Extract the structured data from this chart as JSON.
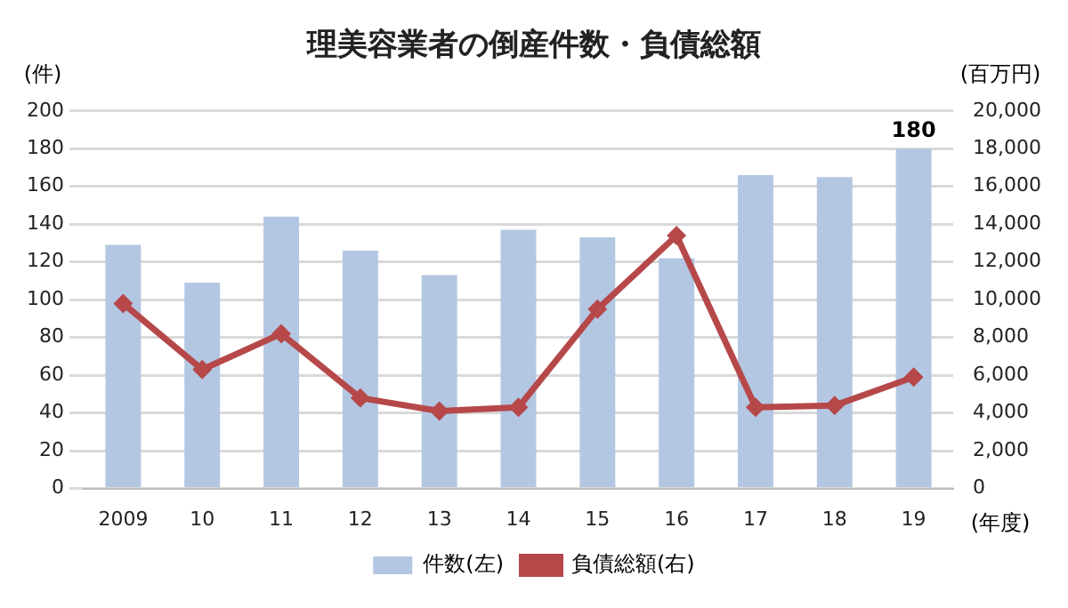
{
  "chart_data": {
    "type": "bar",
    "title": "理美容業者の倒産件数・負債総額",
    "categories": [
      "2009",
      "10",
      "11",
      "12",
      "13",
      "14",
      "15",
      "16",
      "17",
      "18",
      "19"
    ],
    "series": [
      {
        "name": "件数(左)",
        "color": "#b4c7e2",
        "values": [
          129,
          109,
          144,
          126,
          113,
          137,
          133,
          122,
          166,
          165,
          180
        ],
        "value_labels": [
          null,
          null,
          null,
          null,
          null,
          null,
          null,
          null,
          null,
          null,
          "180"
        ]
      },
      {
        "name": "負債総額(右)",
        "type": "line",
        "axis": "y2",
        "color": "#b6484a",
        "marker": "diamond",
        "values": [
          9800,
          6300,
          8200,
          4800,
          4100,
          4300,
          9500,
          13400,
          4300,
          4400,
          5900
        ]
      }
    ],
    "ylabel": "(件)",
    "y2label": "(百万円)",
    "xlabel": "(年度)",
    "ylim": [
      0,
      200
    ],
    "yticks": [
      0,
      20,
      40,
      60,
      80,
      100,
      120,
      140,
      160,
      180,
      200
    ],
    "y2lim": [
      0,
      20000
    ],
    "y2ticks": [
      0,
      {
        "value": 2000,
        "label": "2,000"
      },
      {
        "value": 4000,
        "label": "4,000"
      },
      {
        "value": 6000,
        "label": "6,000"
      },
      {
        "value": 8000,
        "label": "8,000"
      },
      {
        "value": 10000,
        "label": "10,000"
      },
      {
        "value": 12000,
        "label": "12,000"
      },
      {
        "value": 14000,
        "label": "14,000"
      },
      {
        "value": 16000,
        "label": "16,000"
      },
      {
        "value": 18000,
        "label": "18,000"
      },
      {
        "value": 20000,
        "label": "20,000"
      }
    ],
    "grid": "y",
    "legend": "bottom"
  }
}
